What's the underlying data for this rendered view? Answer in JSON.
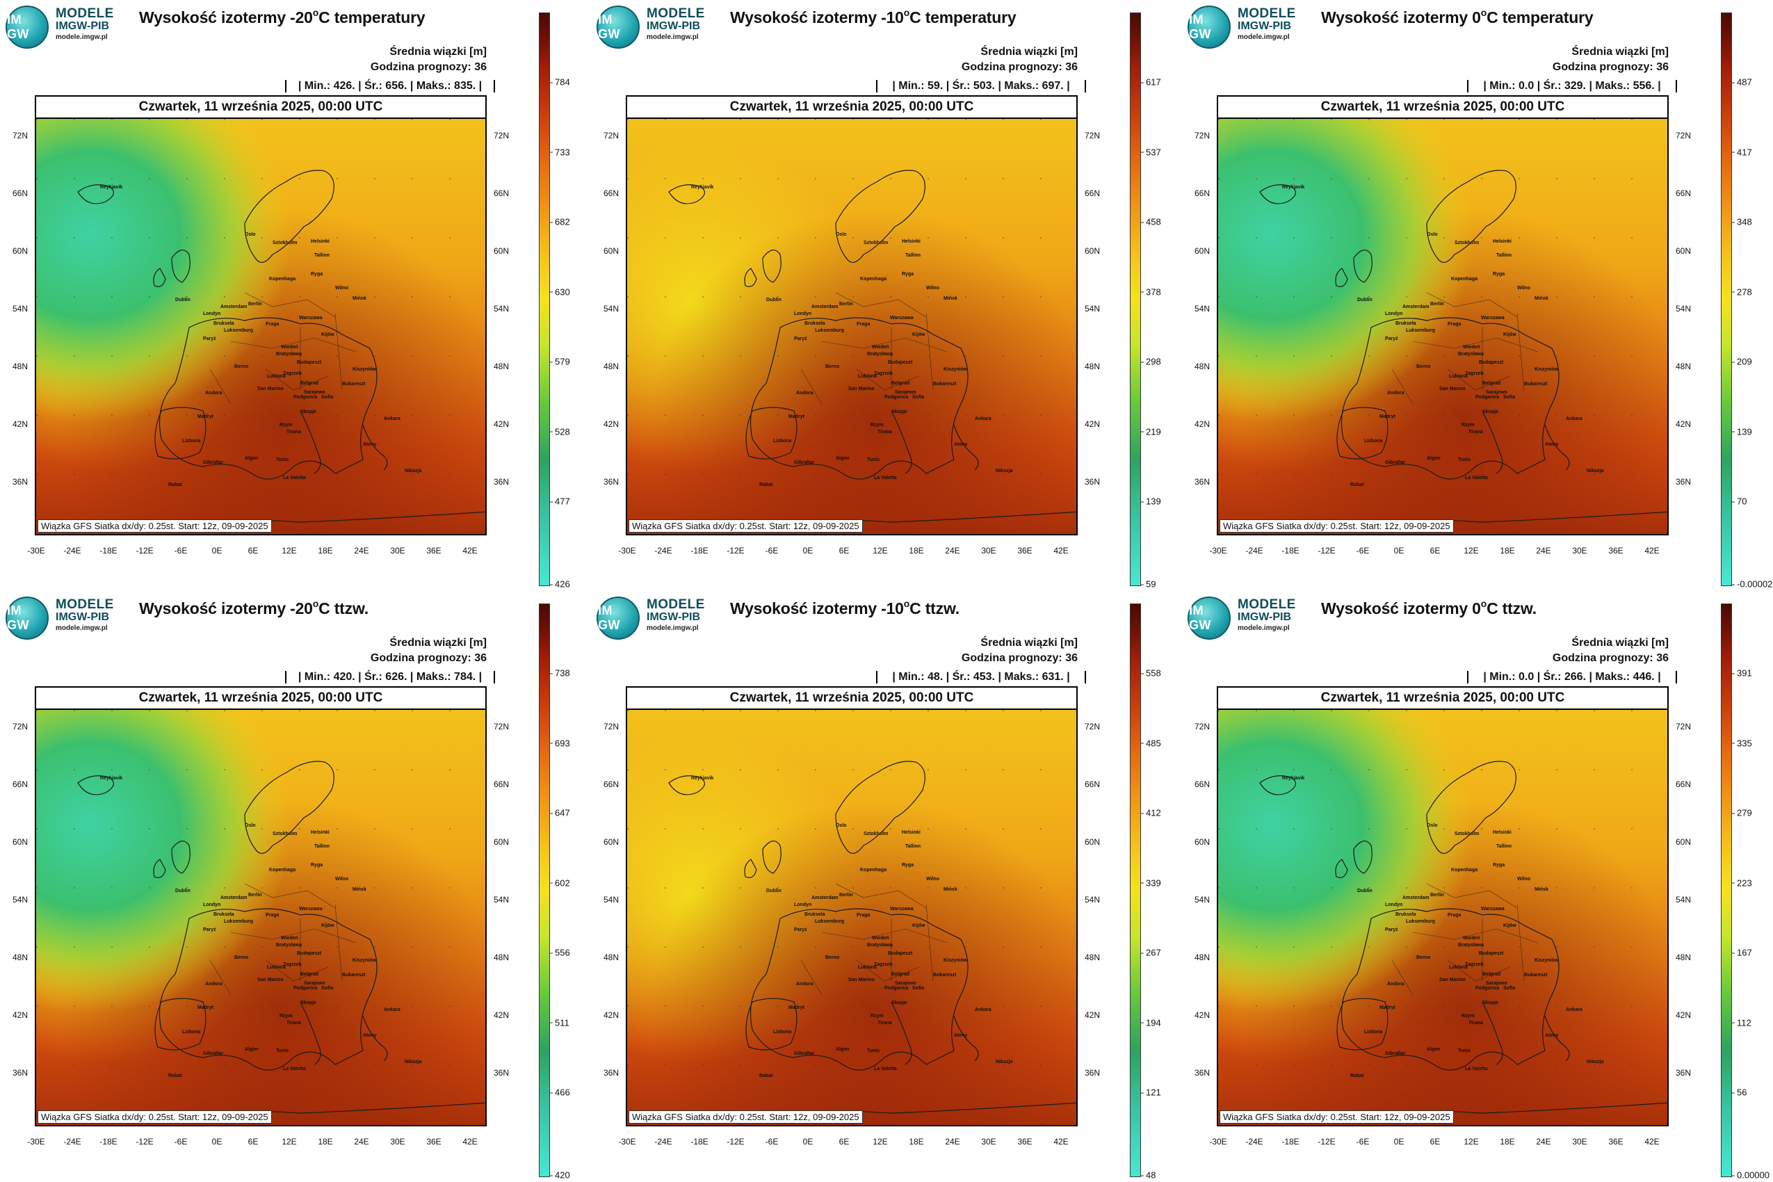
{
  "logo": {
    "mark": "IM GW",
    "title": "MODELE",
    "subtitle": "IMGW-PIB",
    "url": "modele.imgw.pl"
  },
  "common": {
    "metric": "Średnia wiązki [m]",
    "forecast_hour": "Godzina prognozy: 36",
    "date": "Czwartek, 11 września 2025, 00:00 UTC",
    "source": "Wiązka GFS Siatka dx/dy: 0.25st. Start: 12z, 09-09-2025",
    "lat_labels": [
      "72N",
      "66N",
      "60N",
      "54N",
      "48N",
      "42N",
      "36N"
    ],
    "lon_labels": [
      "-30E",
      "-24E",
      "-18E",
      "-12E",
      "-6E",
      "0E",
      "6E",
      "12E",
      "18E",
      "24E",
      "30E",
      "36E",
      "42E"
    ],
    "cities": [
      "Oslo",
      "Sztokholm",
      "Helsinki",
      "Tallinn",
      "Ryga",
      "Kopenhaga",
      "Wilno",
      "Mińsk",
      "Dublin",
      "Londyn",
      "Amsterdam",
      "Berlin",
      "Warszawa",
      "Bruksela",
      "Luksemburg",
      "Praga",
      "Paryż",
      "Wiedeń",
      "Kijów",
      "Bratysława",
      "Budapeszt",
      "Berno",
      "Kiszyniów",
      "Lublana",
      "Zagrzeb",
      "Belgrad",
      "Bukareszt",
      "San Marino",
      "Sarajewo",
      "Podgorica",
      "Sofia",
      "Andora",
      "Skopje",
      "Madryt",
      "Rzym",
      "Tirana",
      "Ankara",
      "Lizbona",
      "Ateny",
      "Gibraltar",
      "Algier",
      "Tunis",
      "La Valetta",
      "Nikozja",
      "Rabat",
      "Reykjavik"
    ]
  },
  "panels": [
    {
      "title_prefix": "Wysokość izotermy -20",
      "title_suffix": "C temperatury",
      "stats": "| Min.: 426. | Śr.: 656. | Maks.: 835. |",
      "cbar_ticks": [
        "784",
        "733",
        "682",
        "630",
        "579",
        "528",
        "477",
        "426"
      ]
    },
    {
      "title_prefix": "Wysokość izotermy -10",
      "title_suffix": "C temperatury",
      "stats": "| Min.: 59. | Śr.: 503. | Maks.: 697. |",
      "cbar_ticks": [
        "617",
        "537",
        "458",
        "378",
        "298",
        "219",
        "139",
        "59"
      ]
    },
    {
      "title_prefix": "Wysokość izotermy 0",
      "title_suffix": "C temperatury",
      "stats": "| Min.: 0.0 | Śr.: 329. | Maks.: 556. |",
      "cbar_ticks": [
        "487",
        "417",
        "348",
        "278",
        "209",
        "139",
        "70",
        "-0.00002"
      ]
    },
    {
      "title_prefix": "Wysokość izotermy -20",
      "title_suffix": "C ttzw.",
      "stats": "| Min.: 420. | Śr.: 626. | Maks.: 784. |",
      "cbar_ticks": [
        "738",
        "693",
        "647",
        "602",
        "556",
        "511",
        "466",
        "420"
      ]
    },
    {
      "title_prefix": "Wysokość izotermy -10",
      "title_suffix": "C ttzw.",
      "stats": "| Min.: 48. | Śr.: 453. | Maks.: 631. |",
      "cbar_ticks": [
        "558",
        "485",
        "412",
        "339",
        "267",
        "194",
        "121",
        "48"
      ]
    },
    {
      "title_prefix": "Wysokość izotermy 0",
      "title_suffix": "C ttzw.",
      "stats": "| Min.: 0.0 | Śr.: 266. | Maks.: 446. |",
      "cbar_ticks": [
        "391",
        "335",
        "279",
        "223",
        "167",
        "112",
        "56",
        "0.00000"
      ]
    }
  ]
}
